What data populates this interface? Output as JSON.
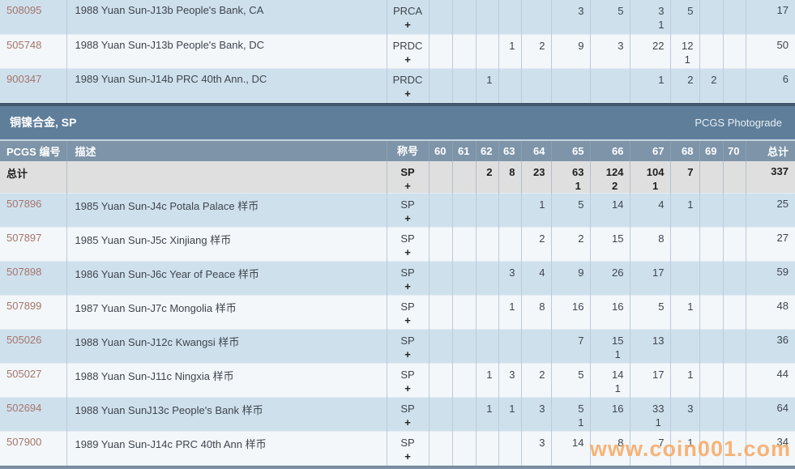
{
  "header": {
    "id": "PCGS 编号",
    "desc": "描述",
    "designation": "称号",
    "total": "总计"
  },
  "grade_columns": [
    "60",
    "61",
    "62",
    "63",
    "64",
    "65",
    "66",
    "67",
    "68",
    "69",
    "70"
  ],
  "section": {
    "title": "铜镍合金, SP",
    "link": "PCGS Photograde"
  },
  "watermark": "www.coin001.com",
  "top_rows": [
    {
      "id": "508095",
      "desc": "1988 Yuan Sun-J13b People's Bank, CA",
      "designation": "PRCA",
      "plus": "+",
      "grades": [
        "",
        "",
        "",
        "",
        "",
        "3",
        "5",
        "3|1",
        "5",
        "",
        ""
      ],
      "total": "17"
    },
    {
      "id": "505748",
      "desc": "1988 Yuan Sun-J13b People's Bank, DC",
      "designation": "PRDC",
      "plus": "+",
      "grades": [
        "",
        "",
        "",
        "1",
        "2",
        "9",
        "3",
        "22",
        "12|1",
        "",
        ""
      ],
      "total": "50"
    },
    {
      "id": "900347",
      "desc": "1989 Yuan Sun-J14b PRC 40th Ann., DC",
      "designation": "PRDC",
      "plus": "+",
      "grades": [
        "",
        "",
        "1",
        "",
        "",
        "",
        "",
        "1",
        "2",
        "2",
        ""
      ],
      "total": "6"
    }
  ],
  "total_row": {
    "id": "总计",
    "desc": "",
    "designation": "SP",
    "plus": "+",
    "grades": [
      "",
      "",
      "2",
      "8",
      "23",
      "63|1",
      "124|2",
      "104|1",
      "7",
      "",
      ""
    ],
    "total": "337"
  },
  "sp_rows": [
    {
      "id": "507896",
      "desc": "1985 Yuan Sun-J4c Potala Palace 样币",
      "designation": "SP",
      "plus": "+",
      "grades": [
        "",
        "",
        "",
        "",
        "1",
        "5",
        "14",
        "4",
        "1",
        "",
        ""
      ],
      "total": "25"
    },
    {
      "id": "507897",
      "desc": "1985 Yuan Sun-J5c Xinjiang 样币",
      "designation": "SP",
      "plus": "+",
      "grades": [
        "",
        "",
        "",
        "",
        "2",
        "2",
        "15",
        "8",
        "",
        "",
        ""
      ],
      "total": "27"
    },
    {
      "id": "507898",
      "desc": "1986 Yuan Sun-J6c Year of Peace 样币",
      "designation": "SP",
      "plus": "+",
      "grades": [
        "",
        "",
        "",
        "3",
        "4",
        "9",
        "26",
        "17",
        "",
        "",
        ""
      ],
      "total": "59"
    },
    {
      "id": "507899",
      "desc": "1987 Yuan Sun-J7c Mongolia 样币",
      "designation": "SP",
      "plus": "+",
      "grades": [
        "",
        "",
        "",
        "1",
        "8",
        "16",
        "16",
        "5",
        "1",
        "",
        ""
      ],
      "total": "48"
    },
    {
      "id": "505026",
      "desc": "1988 Yuan Sun-J12c Kwangsi 样币",
      "designation": "SP",
      "plus": "+",
      "grades": [
        "",
        "",
        "",
        "",
        "",
        "7",
        "15|1",
        "13",
        "",
        "",
        ""
      ],
      "total": "36"
    },
    {
      "id": "505027",
      "desc": "1988 Yuan Sun-J11c Ningxia 样币",
      "designation": "SP",
      "plus": "+",
      "grades": [
        "",
        "",
        "1",
        "3",
        "2",
        "5",
        "14|1",
        "17",
        "1",
        "",
        ""
      ],
      "total": "44"
    },
    {
      "id": "502694",
      "desc": "1988 Yuan SunJ13c People's Bank 样币",
      "designation": "SP",
      "plus": "+",
      "grades": [
        "",
        "",
        "1",
        "1",
        "3",
        "5|1",
        "16",
        "33|1",
        "3",
        "",
        ""
      ],
      "total": "64"
    },
    {
      "id": "507900",
      "desc": "1989 Yuan Sun-J14c PRC 40th Ann 样币",
      "designation": "SP",
      "plus": "+",
      "grades": [
        "",
        "",
        "",
        "",
        "3",
        "14",
        "8",
        "7",
        "1",
        "",
        ""
      ],
      "total": "34"
    }
  ]
}
